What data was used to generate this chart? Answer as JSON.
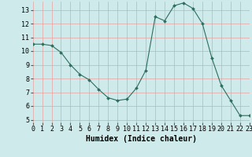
{
  "x": [
    0,
    1,
    2,
    3,
    4,
    5,
    6,
    7,
    8,
    9,
    10,
    11,
    12,
    13,
    14,
    15,
    16,
    17,
    18,
    19,
    20,
    21,
    22,
    23
  ],
  "y": [
    10.5,
    10.5,
    10.4,
    9.9,
    9.0,
    8.3,
    7.9,
    7.2,
    6.6,
    6.4,
    6.5,
    7.3,
    8.6,
    12.5,
    12.2,
    13.3,
    13.5,
    13.1,
    12.0,
    9.5,
    7.5,
    6.4,
    5.3,
    5.3
  ],
  "xlabel": "Humidex (Indice chaleur)",
  "xlim": [
    0,
    23
  ],
  "ylim": [
    4.8,
    13.6
  ],
  "yticks": [
    5,
    6,
    7,
    8,
    9,
    10,
    11,
    12,
    13
  ],
  "xticks": [
    0,
    1,
    2,
    3,
    4,
    5,
    6,
    7,
    8,
    9,
    10,
    11,
    12,
    13,
    14,
    15,
    16,
    17,
    18,
    19,
    20,
    21,
    22,
    23
  ],
  "line_color": "#2d6e5e",
  "marker": "D",
  "marker_size": 2.0,
  "bg_color": "#ceeaea",
  "grid_color_x": "#e8a0a0",
  "grid_color_y": "#e8a0a0",
  "label_fontsize": 7,
  "tick_fontsize": 6
}
